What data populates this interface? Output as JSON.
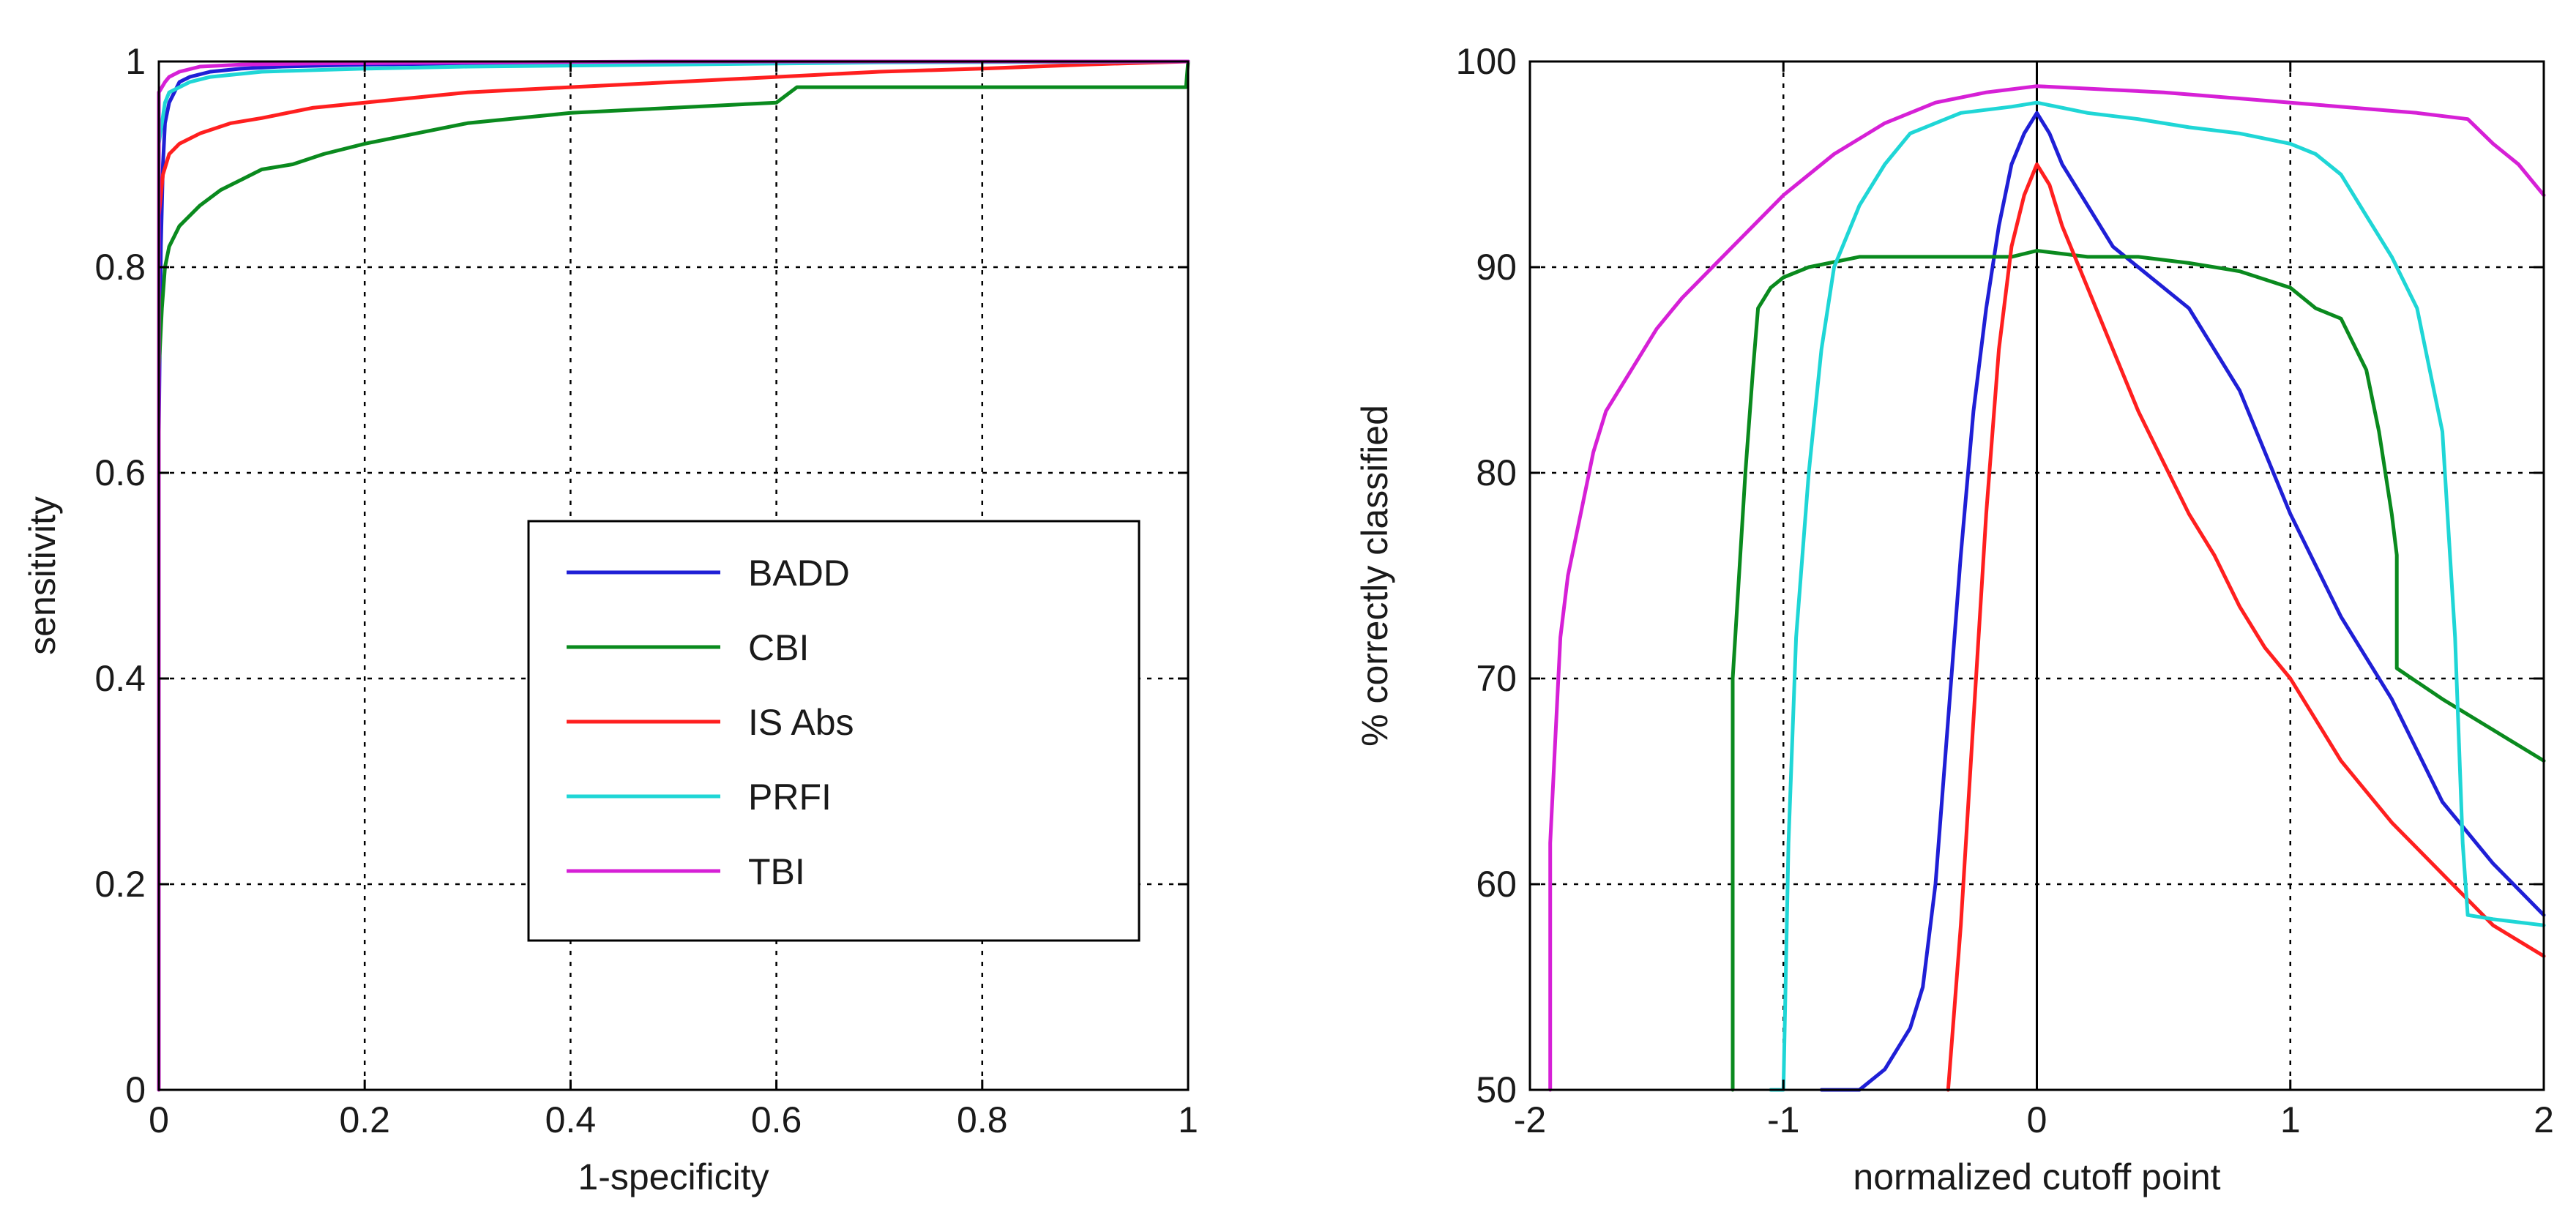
{
  "chart_data": [
    {
      "type": "line",
      "xlabel": "1-specificity",
      "ylabel": "sensitivity",
      "xlim": [
        0,
        1
      ],
      "ylim": [
        0,
        1
      ],
      "xticks": [
        0,
        0.2,
        0.4,
        0.6,
        0.8,
        1
      ],
      "xtick_labels": [
        "0",
        "0.2",
        "0.4",
        "0.6",
        "0.8",
        "1"
      ],
      "yticks": [
        0,
        0.2,
        0.4,
        0.6,
        0.8,
        1
      ],
      "ytick_labels": [
        "0",
        "0.2",
        "0.4",
        "0.6",
        "0.8",
        "1"
      ],
      "grid": true,
      "legend_position": "lower-right",
      "series": [
        {
          "name": "BADD",
          "color": "#1f1fd6",
          "x": [
            0,
            0.002,
            0.004,
            0.006,
            0.01,
            0.015,
            0.02,
            0.03,
            0.05,
            0.08,
            0.12,
            0.2,
            0.3,
            0.4,
            0.5,
            1.0
          ],
          "y": [
            0.64,
            0.82,
            0.9,
            0.94,
            0.96,
            0.97,
            0.98,
            0.985,
            0.99,
            0.993,
            0.995,
            0.997,
            0.998,
            0.999,
            1.0,
            1.0
          ]
        },
        {
          "name": "CBI",
          "color": "#0a8a1e",
          "x": [
            0,
            0.003,
            0.006,
            0.01,
            0.02,
            0.04,
            0.06,
            0.08,
            0.1,
            0.13,
            0.16,
            0.2,
            0.25,
            0.3,
            0.35,
            0.4,
            0.5,
            0.6,
            0.62,
            0.7,
            0.8,
            0.9,
            0.998,
            1.0
          ],
          "y": [
            0.7,
            0.76,
            0.8,
            0.82,
            0.84,
            0.86,
            0.875,
            0.885,
            0.895,
            0.9,
            0.91,
            0.92,
            0.93,
            0.94,
            0.945,
            0.95,
            0.955,
            0.96,
            0.975,
            0.975,
            0.975,
            0.975,
            0.975,
            1.0
          ]
        },
        {
          "name": "IS Abs",
          "color": "#ff1f1f",
          "x": [
            0,
            0.004,
            0.01,
            0.02,
            0.04,
            0.07,
            0.1,
            0.15,
            0.2,
            0.25,
            0.3,
            0.4,
            0.5,
            0.6,
            0.7,
            0.8,
            0.9,
            1.0
          ],
          "y": [
            0.85,
            0.89,
            0.91,
            0.92,
            0.93,
            0.94,
            0.945,
            0.955,
            0.96,
            0.965,
            0.97,
            0.975,
            0.98,
            0.985,
            0.99,
            0.993,
            0.997,
            1.0
          ]
        },
        {
          "name": "PRFI",
          "color": "#1fd6d6",
          "x": [
            0,
            0.003,
            0.006,
            0.01,
            0.02,
            0.03,
            0.05,
            0.1,
            0.2,
            0.3,
            0.5,
            0.7,
            1.0
          ],
          "y": [
            0.92,
            0.94,
            0.96,
            0.97,
            0.975,
            0.98,
            0.985,
            0.99,
            0.993,
            0.995,
            0.997,
            0.999,
            1.0
          ]
        },
        {
          "name": "TBI",
          "color": "#d620d6",
          "x": [
            0,
            0.0,
            0.003,
            0.006,
            0.01,
            0.02,
            0.04,
            0.08,
            0.15,
            0.3,
            0.5,
            0.7,
            1.0
          ],
          "y": [
            0.0,
            0.97,
            0.975,
            0.98,
            0.985,
            0.99,
            0.995,
            0.997,
            0.998,
            0.999,
            1.0,
            1.0,
            1.0
          ]
        }
      ]
    },
    {
      "type": "line",
      "xlabel": "normalized cutoff point",
      "ylabel": "% correctly classified",
      "xlim": [
        -2,
        2
      ],
      "ylim": [
        50,
        100
      ],
      "xticks": [
        -2,
        -1,
        0,
        1,
        2
      ],
      "xtick_labels": [
        "-2",
        "-1",
        "0",
        "1",
        "2"
      ],
      "yticks": [
        50,
        60,
        70,
        80,
        90,
        100
      ],
      "ytick_labels": [
        "50",
        "60",
        "70",
        "80",
        "90",
        "100"
      ],
      "grid": true,
      "series": [
        {
          "name": "BADD",
          "color": "#1f1fd6",
          "x": [
            -0.85,
            -0.7,
            -0.6,
            -0.5,
            -0.45,
            -0.4,
            -0.35,
            -0.3,
            -0.25,
            -0.2,
            -0.15,
            -0.1,
            -0.05,
            0.0,
            0.05,
            0.1,
            0.2,
            0.3,
            0.4,
            0.5,
            0.6,
            0.8,
            1.0,
            1.2,
            1.4,
            1.6,
            1.8,
            2.0
          ],
          "y": [
            50,
            50,
            51,
            53,
            55,
            60,
            68,
            76,
            83,
            88,
            92,
            95,
            96.5,
            97.5,
            96.5,
            95,
            93,
            91,
            90,
            89,
            88,
            84,
            78,
            73,
            69,
            64,
            61,
            58.5
          ]
        },
        {
          "name": "CBI",
          "color": "#0a8a1e",
          "x": [
            -1.2,
            -1.2,
            -1.15,
            -1.12,
            -1.1,
            -1.05,
            -1.0,
            -0.9,
            -0.7,
            -0.5,
            -0.3,
            -0.1,
            0.0,
            0.2,
            0.4,
            0.6,
            0.8,
            1.0,
            1.1,
            1.2,
            1.3,
            1.35,
            1.4,
            1.42,
            1.42,
            1.6,
            1.8,
            2.0
          ],
          "y": [
            50,
            70,
            80,
            85,
            88,
            89,
            89.5,
            90,
            90.5,
            90.5,
            90.5,
            90.5,
            90.8,
            90.5,
            90.5,
            90.2,
            89.8,
            89,
            88,
            87.5,
            85,
            82,
            78,
            76,
            70.5,
            69,
            67.5,
            66
          ]
        },
        {
          "name": "IS Abs",
          "color": "#ff1f1f",
          "x": [
            -0.35,
            -0.3,
            -0.25,
            -0.2,
            -0.15,
            -0.1,
            -0.05,
            0.0,
            0.05,
            0.1,
            0.2,
            0.3,
            0.4,
            0.5,
            0.6,
            0.7,
            0.8,
            0.9,
            1.0,
            1.2,
            1.4,
            1.6,
            1.8,
            2.0
          ],
          "y": [
            50,
            58,
            68,
            78,
            86,
            91,
            93.5,
            95,
            94,
            92,
            89,
            86,
            83,
            80.5,
            78,
            76,
            73.5,
            71.5,
            70,
            66,
            63,
            60.5,
            58,
            56.5
          ]
        },
        {
          "name": "PRFI",
          "color": "#1fd6d6",
          "x": [
            -1.05,
            -1.0,
            -0.98,
            -0.95,
            -0.9,
            -0.85,
            -0.8,
            -0.7,
            -0.6,
            -0.5,
            -0.3,
            -0.1,
            0.0,
            0.2,
            0.4,
            0.6,
            0.8,
            1.0,
            1.1,
            1.2,
            1.3,
            1.4,
            1.5,
            1.6,
            1.65,
            1.68,
            1.7,
            1.8,
            2.0
          ],
          "y": [
            50,
            50,
            62,
            72,
            80,
            86,
            90,
            93,
            95,
            96.5,
            97.5,
            97.8,
            98,
            97.5,
            97.2,
            96.8,
            96.5,
            96,
            95.5,
            94.5,
            92.5,
            90.5,
            88,
            82,
            72,
            62,
            58.5,
            58.3,
            58
          ]
        },
        {
          "name": "TBI",
          "color": "#d620d6",
          "x": [
            -1.92,
            -1.92,
            -1.9,
            -1.88,
            -1.85,
            -1.8,
            -1.75,
            -1.7,
            -1.6,
            -1.5,
            -1.4,
            -1.2,
            -1.0,
            -0.8,
            -0.6,
            -0.4,
            -0.2,
            0.0,
            0.5,
            1.0,
            1.5,
            1.7,
            1.8,
            1.9,
            2.0
          ],
          "y": [
            50,
            62,
            67,
            72,
            75,
            78,
            81,
            83,
            85,
            87,
            88.5,
            91,
            93.5,
            95.5,
            97,
            98,
            98.5,
            98.8,
            98.5,
            98,
            97.5,
            97.2,
            96,
            95,
            93.5
          ]
        }
      ]
    }
  ]
}
